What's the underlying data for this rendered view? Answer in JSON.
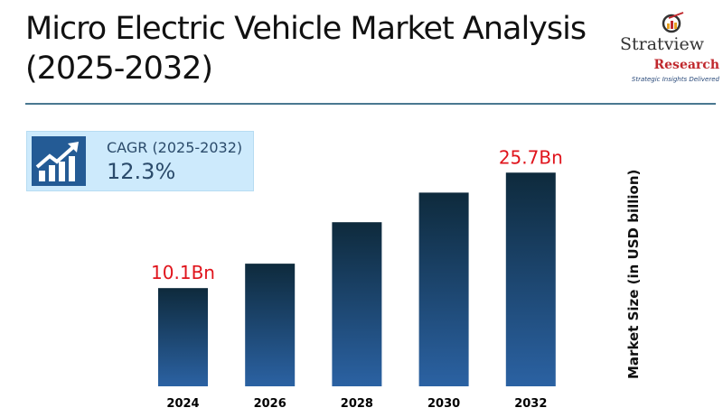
{
  "title_line1": "Micro Electric Vehicle Market Analysis",
  "title_line2": "(2025-2032)",
  "logo": {
    "name": "Stratview",
    "sub": "Research",
    "tagline": "Strategic Insights Delivered"
  },
  "cagr": {
    "label": "CAGR (2025-2032)",
    "value": "12.3%"
  },
  "chart_data": {
    "type": "bar",
    "categories": [
      "2024",
      "2026",
      "2028",
      "2030",
      "2032"
    ],
    "values": [
      10.1,
      13.4,
      19.0,
      23.0,
      25.7
    ],
    "data_labels": [
      "10.1Bn",
      "",
      "",
      "",
      "25.7Bn"
    ],
    "ylabel": "Market Size (in USD billion)",
    "xlabel": "",
    "colors": {
      "bar_top": "#0e2a3c",
      "bar_bottom": "#2b62a3",
      "label": "#e0141c"
    }
  }
}
